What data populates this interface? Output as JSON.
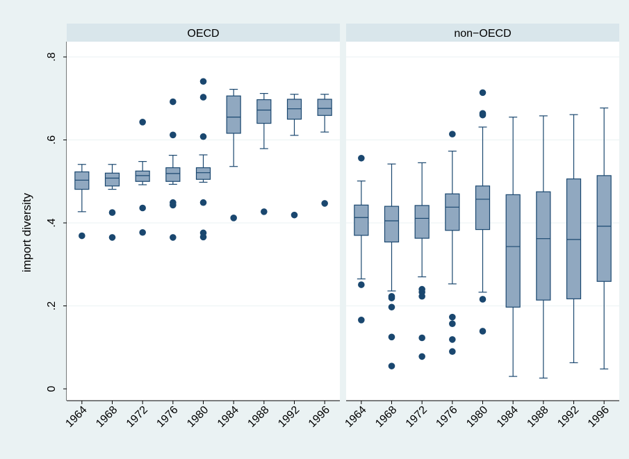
{
  "colors": {
    "outer_background": "#eaf2f3",
    "plot_background": "#ffffff",
    "panel_header": "#d9e6eb",
    "box_fill": "#90a8c0",
    "line": "#1a476f",
    "grid": "#eaf2f3"
  },
  "chart_data": {
    "type": "box",
    "ylabel": "import diversity",
    "ylim": [
      0,
      0.8
    ],
    "yticks": [
      0,
      0.2,
      0.4,
      0.6,
      0.8
    ],
    "ytick_labels": [
      "0",
      ".2",
      ".4",
      ".6",
      ".8"
    ],
    "grid": true,
    "categories": [
      "1964",
      "1968",
      "1972",
      "1976",
      "1980",
      "1984",
      "1988",
      "1992",
      "1996"
    ],
    "panels": [
      {
        "title": "OECD",
        "boxes": [
          {
            "year": "1964",
            "whisker_low": 0.427,
            "q1": 0.481,
            "median": 0.503,
            "q3": 0.523,
            "whisker_high": 0.541,
            "outliers": [
              0.369
            ]
          },
          {
            "year": "1968",
            "whisker_low": 0.481,
            "q1": 0.489,
            "median": 0.508,
            "q3": 0.52,
            "whisker_high": 0.541,
            "outliers": [
              0.425,
              0.365
            ]
          },
          {
            "year": "1972",
            "whisker_low": 0.492,
            "q1": 0.5,
            "median": 0.514,
            "q3": 0.525,
            "whisker_high": 0.548,
            "outliers": [
              0.643,
              0.436,
              0.377
            ]
          },
          {
            "year": "1976",
            "whisker_low": 0.493,
            "q1": 0.5,
            "median": 0.519,
            "q3": 0.533,
            "whisker_high": 0.563,
            "outliers": [
              0.692,
              0.612,
              0.449,
              0.443,
              0.365
            ]
          },
          {
            "year": "1980",
            "whisker_low": 0.498,
            "q1": 0.505,
            "median": 0.521,
            "q3": 0.533,
            "whisker_high": 0.564,
            "outliers": [
              0.741,
              0.703,
              0.608,
              0.449,
              0.376,
              0.366
            ]
          },
          {
            "year": "1984",
            "whisker_low": 0.536,
            "q1": 0.616,
            "median": 0.655,
            "q3": 0.706,
            "whisker_high": 0.722,
            "outliers": [
              0.412
            ]
          },
          {
            "year": "1988",
            "whisker_low": 0.579,
            "q1": 0.64,
            "median": 0.672,
            "q3": 0.697,
            "whisker_high": 0.712,
            "outliers": [
              0.427
            ]
          },
          {
            "year": "1992",
            "whisker_low": 0.611,
            "q1": 0.65,
            "median": 0.675,
            "q3": 0.698,
            "whisker_high": 0.71,
            "outliers": [
              0.419
            ]
          },
          {
            "year": "1996",
            "whisker_low": 0.619,
            "q1": 0.659,
            "median": 0.676,
            "q3": 0.698,
            "whisker_high": 0.71,
            "outliers": [
              0.447
            ]
          }
        ]
      },
      {
        "title": "non−OECD",
        "boxes": [
          {
            "year": "1964",
            "whisker_low": 0.265,
            "q1": 0.37,
            "median": 0.413,
            "q3": 0.443,
            "whisker_high": 0.501,
            "outliers": [
              0.556,
              0.251,
              0.166
            ]
          },
          {
            "year": "1968",
            "whisker_low": 0.236,
            "q1": 0.354,
            "median": 0.405,
            "q3": 0.44,
            "whisker_high": 0.542,
            "outliers": [
              0.223,
              0.219,
              0.197,
              0.125,
              0.055
            ]
          },
          {
            "year": "1972",
            "whisker_low": 0.27,
            "q1": 0.363,
            "median": 0.411,
            "q3": 0.442,
            "whisker_high": 0.545,
            "outliers": [
              0.24,
              0.233,
              0.223,
              0.123,
              0.078
            ]
          },
          {
            "year": "1976",
            "whisker_low": 0.253,
            "q1": 0.382,
            "median": 0.438,
            "q3": 0.47,
            "whisker_high": 0.573,
            "outliers": [
              0.614,
              0.173,
              0.157,
              0.119,
              0.09
            ]
          },
          {
            "year": "1980",
            "whisker_low": 0.233,
            "q1": 0.384,
            "median": 0.457,
            "q3": 0.489,
            "whisker_high": 0.631,
            "outliers": [
              0.714,
              0.664,
              0.66,
              0.216,
              0.139
            ]
          },
          {
            "year": "1984",
            "whisker_low": 0.03,
            "q1": 0.197,
            "median": 0.343,
            "q3": 0.468,
            "whisker_high": 0.655,
            "outliers": []
          },
          {
            "year": "1988",
            "whisker_low": 0.026,
            "q1": 0.214,
            "median": 0.362,
            "q3": 0.475,
            "whisker_high": 0.658,
            "outliers": []
          },
          {
            "year": "1992",
            "whisker_low": 0.063,
            "q1": 0.217,
            "median": 0.36,
            "q3": 0.506,
            "whisker_high": 0.661,
            "outliers": []
          },
          {
            "year": "1996",
            "whisker_low": 0.048,
            "q1": 0.259,
            "median": 0.392,
            "q3": 0.514,
            "whisker_high": 0.677,
            "outliers": []
          }
        ]
      }
    ]
  }
}
